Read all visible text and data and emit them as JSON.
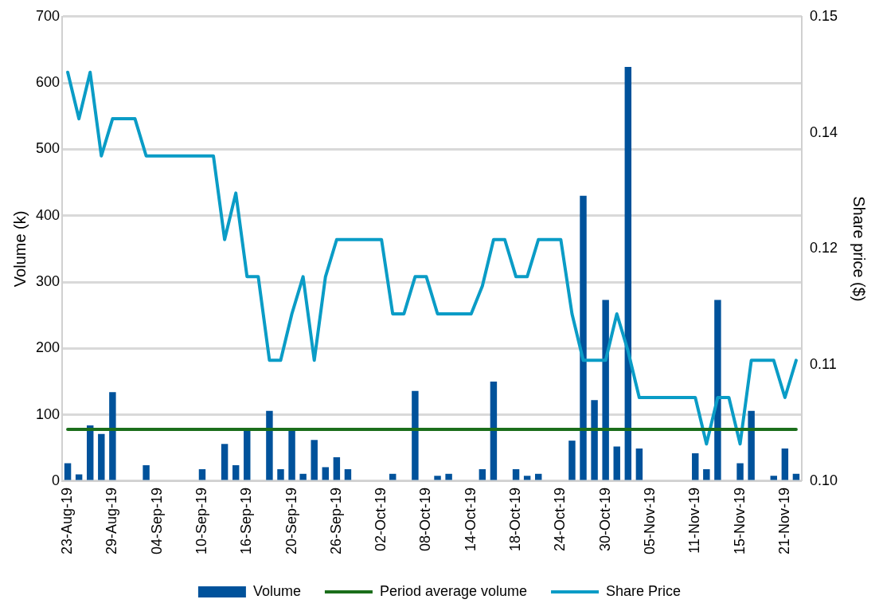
{
  "chart_data": {
    "type": "bar",
    "categories": [
      "23-Aug-19",
      null,
      null,
      null,
      "29-Aug-19",
      null,
      null,
      null,
      "04-Sep-19",
      null,
      null,
      null,
      "10-Sep-19",
      null,
      null,
      null,
      "16-Sep-19",
      null,
      null,
      null,
      "20-Sep-19",
      null,
      null,
      null,
      "26-Sep-19",
      null,
      null,
      null,
      "02-Oct-19",
      null,
      null,
      null,
      "08-Oct-19",
      null,
      null,
      null,
      "14-Oct-19",
      null,
      null,
      null,
      "18-Oct-19",
      null,
      null,
      null,
      "24-Oct-19",
      null,
      null,
      null,
      "30-Oct-19",
      null,
      null,
      null,
      "05-Nov-19",
      null,
      null,
      null,
      "11-Nov-19",
      null,
      null,
      null,
      "15-Nov-19",
      null,
      null,
      null,
      "21-Nov-19",
      null
    ],
    "series": [
      {
        "name": "Volume",
        "color": "#00529b",
        "values": [
          27,
          10,
          84,
          71,
          134,
          null,
          null,
          24,
          null,
          null,
          null,
          null,
          18,
          null,
          56,
          24,
          76,
          null,
          106,
          18,
          77,
          11,
          62,
          21,
          36,
          18,
          null,
          null,
          null,
          11,
          null,
          136,
          null,
          8,
          11,
          null,
          null,
          18,
          150,
          null,
          18,
          8,
          11,
          null,
          null,
          61,
          430,
          122,
          273,
          52,
          624,
          49,
          null,
          null,
          null,
          null,
          42,
          18,
          273,
          null,
          27,
          106,
          null,
          8,
          49,
          11
        ]
      },
      {
        "name": "Period average volume",
        "type": "line",
        "color": "#1b6e1b",
        "values": [
          78,
          78,
          78,
          78,
          78,
          78,
          78,
          78,
          78,
          78,
          78,
          78,
          78,
          78,
          78,
          78,
          78,
          78,
          78,
          78,
          78,
          78,
          78,
          78,
          78,
          78,
          78,
          78,
          78,
          78,
          78,
          78,
          78,
          78,
          78,
          78,
          78,
          78,
          78,
          78,
          78,
          78,
          78,
          78,
          78,
          78,
          78,
          78,
          78,
          78,
          78,
          78,
          78,
          78,
          78,
          78,
          78,
          78,
          78,
          78,
          78,
          78,
          78,
          78,
          78,
          78
        ]
      },
      {
        "name": "Share Price",
        "type": "line",
        "axis": "y2",
        "color": "#0a9cc6",
        "values": [
          0.144,
          0.139,
          0.144,
          0.135,
          0.139,
          0.139,
          0.139,
          0.135,
          0.135,
          0.135,
          0.135,
          0.135,
          0.135,
          0.135,
          0.126,
          0.131,
          0.122,
          0.122,
          0.113,
          0.113,
          0.118,
          0.122,
          0.113,
          0.122,
          0.126,
          0.126,
          0.126,
          0.126,
          0.126,
          0.118,
          0.118,
          0.122,
          0.122,
          0.118,
          0.118,
          0.118,
          0.118,
          0.121,
          0.126,
          0.126,
          0.122,
          0.122,
          0.126,
          0.126,
          0.126,
          0.118,
          0.113,
          0.113,
          0.113,
          0.118,
          0.114,
          0.109,
          0.109,
          0.109,
          0.109,
          0.109,
          0.109,
          0.104,
          0.109,
          0.109,
          0.104,
          0.113,
          0.113,
          0.113,
          0.109,
          0.113
        ]
      }
    ],
    "ylabel": "Volume (k)",
    "y2label": "Share price ($)",
    "ylim": [
      0,
      700
    ],
    "yticks": [
      0,
      100,
      200,
      300,
      400,
      500,
      600,
      700
    ],
    "y2lim": [
      0.1,
      0.15
    ],
    "y2ticks": [
      {
        "value": 0.1,
        "label": "0.10"
      },
      {
        "value": 0.1125,
        "label": "0.11"
      },
      {
        "value": 0.125,
        "label": "0.12"
      },
      {
        "value": 0.1375,
        "label": "0.14"
      },
      0.15
    ],
    "grid": "y",
    "legend": "bottom",
    "marker": "none",
    "line_style": "solid"
  }
}
